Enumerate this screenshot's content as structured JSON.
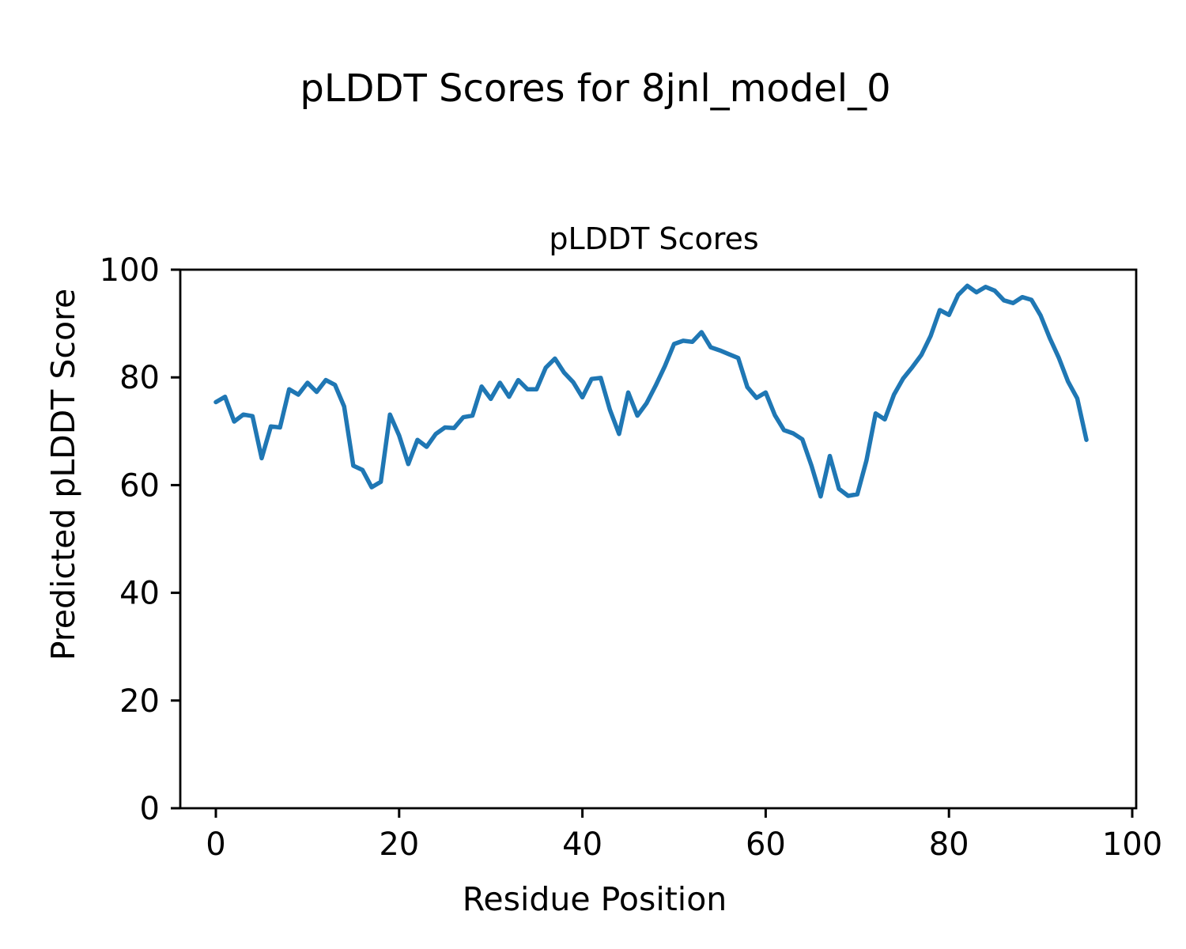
{
  "chart_data": {
    "type": "line",
    "suptitle": "pLDDT Scores for 8jnl_model_0",
    "title": "pLDDT Scores",
    "xlabel": "Residue Position",
    "ylabel": "Predicted pLDDT Score",
    "xlim": [
      -4,
      101
    ],
    "ylim": [
      0,
      100
    ],
    "xticks": [
      0,
      20,
      40,
      60,
      80,
      100
    ],
    "yticks": [
      0,
      20,
      40,
      60,
      80,
      100
    ],
    "grid": false,
    "legend": null,
    "line_color": "#1f77b4",
    "axis_color": "#000000",
    "series": [
      {
        "name": "pLDDT",
        "x_start_residue": 1,
        "values": [
          75.4,
          76.4,
          71.8,
          73.1,
          72.8,
          65.0,
          70.9,
          70.7,
          77.8,
          76.8,
          79.0,
          77.3,
          79.5,
          78.6,
          74.6,
          63.6,
          62.8,
          59.6,
          60.6,
          73.1,
          69.2,
          63.9,
          68.4,
          67.1,
          69.5,
          70.7,
          70.6,
          72.6,
          72.9,
          78.3,
          76.0,
          79.0,
          76.4,
          79.5,
          77.8,
          77.8,
          81.8,
          83.5,
          80.9,
          79.1,
          76.3,
          79.7,
          79.9,
          74.0,
          69.5,
          77.2,
          72.9,
          75.2,
          78.5,
          82.1,
          86.2,
          86.8,
          86.6,
          88.4,
          85.6,
          85.0,
          84.3,
          83.6,
          78.2,
          76.2,
          77.2,
          73.0,
          70.2,
          69.6,
          68.5,
          63.6,
          57.9,
          65.4,
          59.3,
          58.0,
          58.3,
          64.6,
          73.3,
          72.2,
          76.8,
          79.8,
          81.9,
          84.2,
          87.7,
          92.5,
          91.6,
          95.3,
          97.0,
          95.8,
          96.8,
          96.1,
          94.3,
          93.8,
          94.9,
          94.4,
          91.5,
          87.3,
          83.6,
          79.2,
          76.1,
          68.4
        ]
      }
    ]
  }
}
